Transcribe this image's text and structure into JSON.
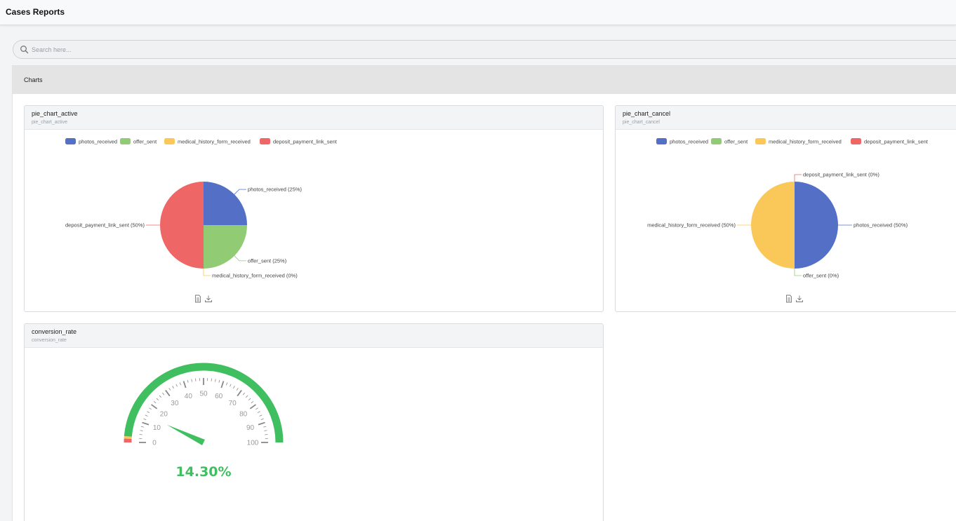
{
  "app": {
    "title": "Cases Reports"
  },
  "search": {
    "placeholder": "Search here..."
  },
  "section": {
    "title": "Charts"
  },
  "colors": {
    "photos_received": "#5470c6",
    "offer_sent": "#91cc75",
    "medical_history_form_received": "#fac858",
    "deposit_payment_link_sent": "#ee6666",
    "gauge_green": "#3fbf5f"
  },
  "cards": {
    "active": {
      "title": "pie_chart_active",
      "subtitle": "pie_chart_active"
    },
    "cancel": {
      "title": "pie_chart_cancel",
      "subtitle": "pie_chart_cancel"
    },
    "conversion": {
      "title": "conversion_rate",
      "subtitle": "conversion_rate"
    }
  },
  "chart_data": [
    {
      "type": "pie",
      "title": "pie_chart_active",
      "legend": [
        "photos_received",
        "offer_sent",
        "medical_history_form_received",
        "deposit_payment_link_sent"
      ],
      "legend_position": "top",
      "slices": [
        {
          "name": "photos_received",
          "value": 25,
          "label": "photos_received (25%)"
        },
        {
          "name": "offer_sent",
          "value": 25,
          "label": "offer_sent (25%)"
        },
        {
          "name": "medical_history_form_received",
          "value": 0,
          "label": "medical_history_form_received (0%)"
        },
        {
          "name": "deposit_payment_link_sent",
          "value": 50,
          "label": "deposit_payment_link_sent (50%)"
        }
      ]
    },
    {
      "type": "pie",
      "title": "pie_chart_cancel",
      "legend": [
        "photos_received",
        "offer_sent",
        "medical_history_form_received",
        "deposit_payment_link_sent"
      ],
      "legend_position": "top",
      "slices": [
        {
          "name": "photos_received",
          "value": 50,
          "label": "photos_received (50%)"
        },
        {
          "name": "offer_sent",
          "value": 0,
          "label": "offer_sent (0%)"
        },
        {
          "name": "medical_history_form_received",
          "value": 50,
          "label": "medical_history_form_received (50%)"
        },
        {
          "name": "deposit_payment_link_sent",
          "value": 0,
          "label": "deposit_payment_link_sent (0%)"
        }
      ]
    },
    {
      "type": "gauge",
      "title": "conversion_rate",
      "min": 0,
      "max": 100,
      "ticks": [
        "0",
        "10",
        "20",
        "30",
        "40",
        "50",
        "60",
        "70",
        "80",
        "90",
        "100"
      ],
      "value": 14.3,
      "value_label": "14.30%"
    }
  ]
}
